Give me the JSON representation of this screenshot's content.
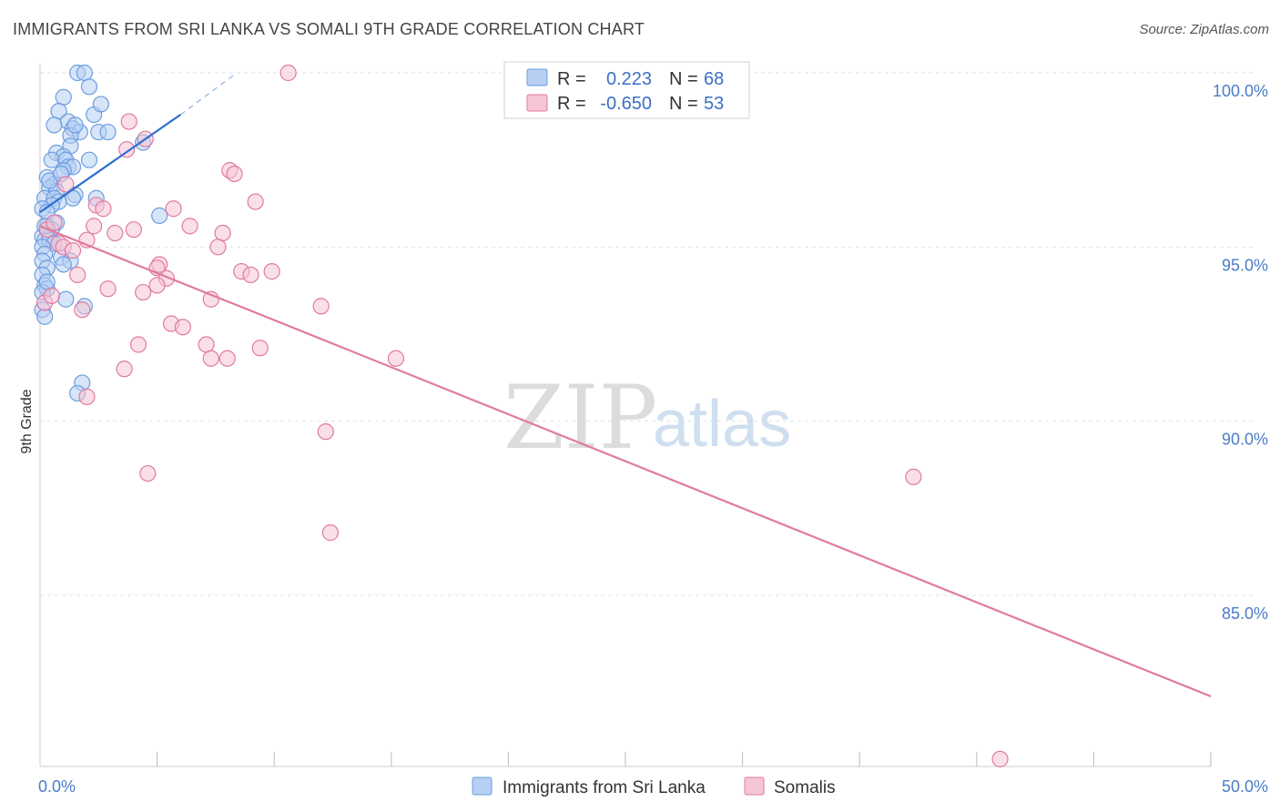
{
  "header": {
    "title": "IMMIGRANTS FROM SRI LANKA VS SOMALI 9TH GRADE CORRELATION CHART",
    "source": "Source: ZipAtlas.com"
  },
  "watermark": {
    "zip": "ZIP",
    "atlas": "atlas"
  },
  "legend": {
    "rows": [
      {
        "r_label": "R = ",
        "r_value": "0.223",
        "n_label": "N = ",
        "n_value": "68"
      },
      {
        "r_label": "R = ",
        "r_value": "-0.650",
        "n_label": "N = ",
        "n_value": "53"
      }
    ]
  },
  "chart_data": {
    "type": "scatter",
    "title": "IMMIGRANTS FROM SRI LANKA VS SOMALI 9TH GRADE CORRELATION CHART",
    "xlabel": "",
    "ylabel": "9th Grade",
    "xlim": [
      0,
      50
    ],
    "ylim": [
      80,
      100.4
    ],
    "x_tick_labels": [
      {
        "value": 0,
        "label": "0.0%"
      },
      {
        "value": 50,
        "label": "50.0%"
      }
    ],
    "y_ticks": [
      {
        "value": 100,
        "label": "100.0%"
      },
      {
        "value": 95,
        "label": "95.0%"
      },
      {
        "value": 90,
        "label": "90.0%"
      },
      {
        "value": 85,
        "label": "85.0%"
      }
    ],
    "x_minor_ticks": [
      5,
      10,
      15,
      20,
      25,
      30,
      35,
      40,
      45,
      50
    ],
    "grid": true,
    "series": [
      {
        "name": "Immigrants from Sri Lanka",
        "color": "#6d9de0",
        "fill": "#b7cff2",
        "trend": {
          "x": [
            0,
            6
          ],
          "y": [
            96.0,
            98.8
          ],
          "dashed_to": {
            "x": 8.4,
            "y": 100.0
          }
        },
        "points": [
          [
            1.6,
            100
          ],
          [
            1.9,
            100
          ],
          [
            2.1,
            99.6
          ],
          [
            1.0,
            99.3
          ],
          [
            0.8,
            98.9
          ],
          [
            2.3,
            98.8
          ],
          [
            1.2,
            98.6
          ],
          [
            0.6,
            98.5
          ],
          [
            1.4,
            98.4
          ],
          [
            1.7,
            98.3
          ],
          [
            2.5,
            98.3
          ],
          [
            2.9,
            98.3
          ],
          [
            1.3,
            98.2
          ],
          [
            4.4,
            98.0
          ],
          [
            1.3,
            97.9
          ],
          [
            0.7,
            97.7
          ],
          [
            1.0,
            97.6
          ],
          [
            0.5,
            97.5
          ],
          [
            1.1,
            97.5
          ],
          [
            2.1,
            97.5
          ],
          [
            1.2,
            97.3
          ],
          [
            1.4,
            97.3
          ],
          [
            1.0,
            97.2
          ],
          [
            0.3,
            97.0
          ],
          [
            0.6,
            96.8
          ],
          [
            0.4,
            96.7
          ],
          [
            0.7,
            96.6
          ],
          [
            1.5,
            96.5
          ],
          [
            0.2,
            96.4
          ],
          [
            0.6,
            96.4
          ],
          [
            1.4,
            96.4
          ],
          [
            2.4,
            96.4
          ],
          [
            0.8,
            96.3
          ],
          [
            0.5,
            96.2
          ],
          [
            0.1,
            96.1
          ],
          [
            0.3,
            96.0
          ],
          [
            5.1,
            95.9
          ],
          [
            0.7,
            95.7
          ],
          [
            0.3,
            95.6
          ],
          [
            0.5,
            95.5
          ],
          [
            0.4,
            95.3
          ],
          [
            0.1,
            95.3
          ],
          [
            0.2,
            95.2
          ],
          [
            0.4,
            95.2
          ],
          [
            0.6,
            95.1
          ],
          [
            0.1,
            95.0
          ],
          [
            0.2,
            94.8
          ],
          [
            0.9,
            94.7
          ],
          [
            0.1,
            94.6
          ],
          [
            1.3,
            94.6
          ],
          [
            1.0,
            94.5
          ],
          [
            0.3,
            94.4
          ],
          [
            0.1,
            94.2
          ],
          [
            0.2,
            93.9
          ],
          [
            0.3,
            93.8
          ],
          [
            0.1,
            93.7
          ],
          [
            1.1,
            93.5
          ],
          [
            1.9,
            93.3
          ],
          [
            0.1,
            93.2
          ],
          [
            0.2,
            93.0
          ],
          [
            1.8,
            91.1
          ],
          [
            1.6,
            90.8
          ],
          [
            0.3,
            94.0
          ],
          [
            0.2,
            95.6
          ],
          [
            0.4,
            96.9
          ],
          [
            0.9,
            97.1
          ],
          [
            1.5,
            98.5
          ],
          [
            2.6,
            99.1
          ]
        ]
      },
      {
        "name": "Somalis",
        "color": "#e07aa0",
        "fill": "#f6c5d6",
        "trend": {
          "x": [
            0,
            50
          ],
          "y": [
            95.6,
            82.1
          ]
        },
        "points": [
          [
            10.6,
            100
          ],
          [
            3.8,
            98.6
          ],
          [
            4.5,
            98.1
          ],
          [
            3.7,
            97.8
          ],
          [
            8.1,
            97.2
          ],
          [
            8.3,
            97.1
          ],
          [
            1.1,
            96.8
          ],
          [
            9.2,
            96.3
          ],
          [
            5.7,
            96.1
          ],
          [
            2.4,
            96.2
          ],
          [
            2.7,
            96.1
          ],
          [
            6.4,
            95.6
          ],
          [
            2.3,
            95.6
          ],
          [
            3.2,
            95.4
          ],
          [
            4.0,
            95.5
          ],
          [
            7.8,
            95.4
          ],
          [
            2.0,
            95.2
          ],
          [
            0.8,
            95.1
          ],
          [
            1.0,
            95.0
          ],
          [
            7.6,
            95.0
          ],
          [
            0.3,
            95.5
          ],
          [
            0.6,
            95.7
          ],
          [
            5.1,
            94.5
          ],
          [
            5.0,
            94.4
          ],
          [
            8.6,
            94.3
          ],
          [
            1.6,
            94.2
          ],
          [
            9.9,
            94.3
          ],
          [
            9.0,
            94.2
          ],
          [
            5.4,
            94.1
          ],
          [
            5.0,
            93.9
          ],
          [
            2.9,
            93.8
          ],
          [
            4.4,
            93.7
          ],
          [
            7.3,
            93.5
          ],
          [
            0.2,
            93.4
          ],
          [
            12.0,
            93.3
          ],
          [
            1.8,
            93.2
          ],
          [
            5.6,
            92.8
          ],
          [
            6.1,
            92.7
          ],
          [
            4.2,
            92.2
          ],
          [
            7.1,
            92.2
          ],
          [
            9.4,
            92.1
          ],
          [
            7.3,
            91.8
          ],
          [
            8.0,
            91.8
          ],
          [
            15.2,
            91.8
          ],
          [
            3.6,
            91.5
          ],
          [
            2.0,
            90.7
          ],
          [
            12.2,
            89.7
          ],
          [
            4.6,
            88.5
          ],
          [
            37.3,
            88.4
          ],
          [
            12.4,
            86.8
          ],
          [
            41.0,
            80.3
          ],
          [
            0.5,
            93.6
          ],
          [
            1.4,
            94.9
          ]
        ]
      }
    ]
  }
}
